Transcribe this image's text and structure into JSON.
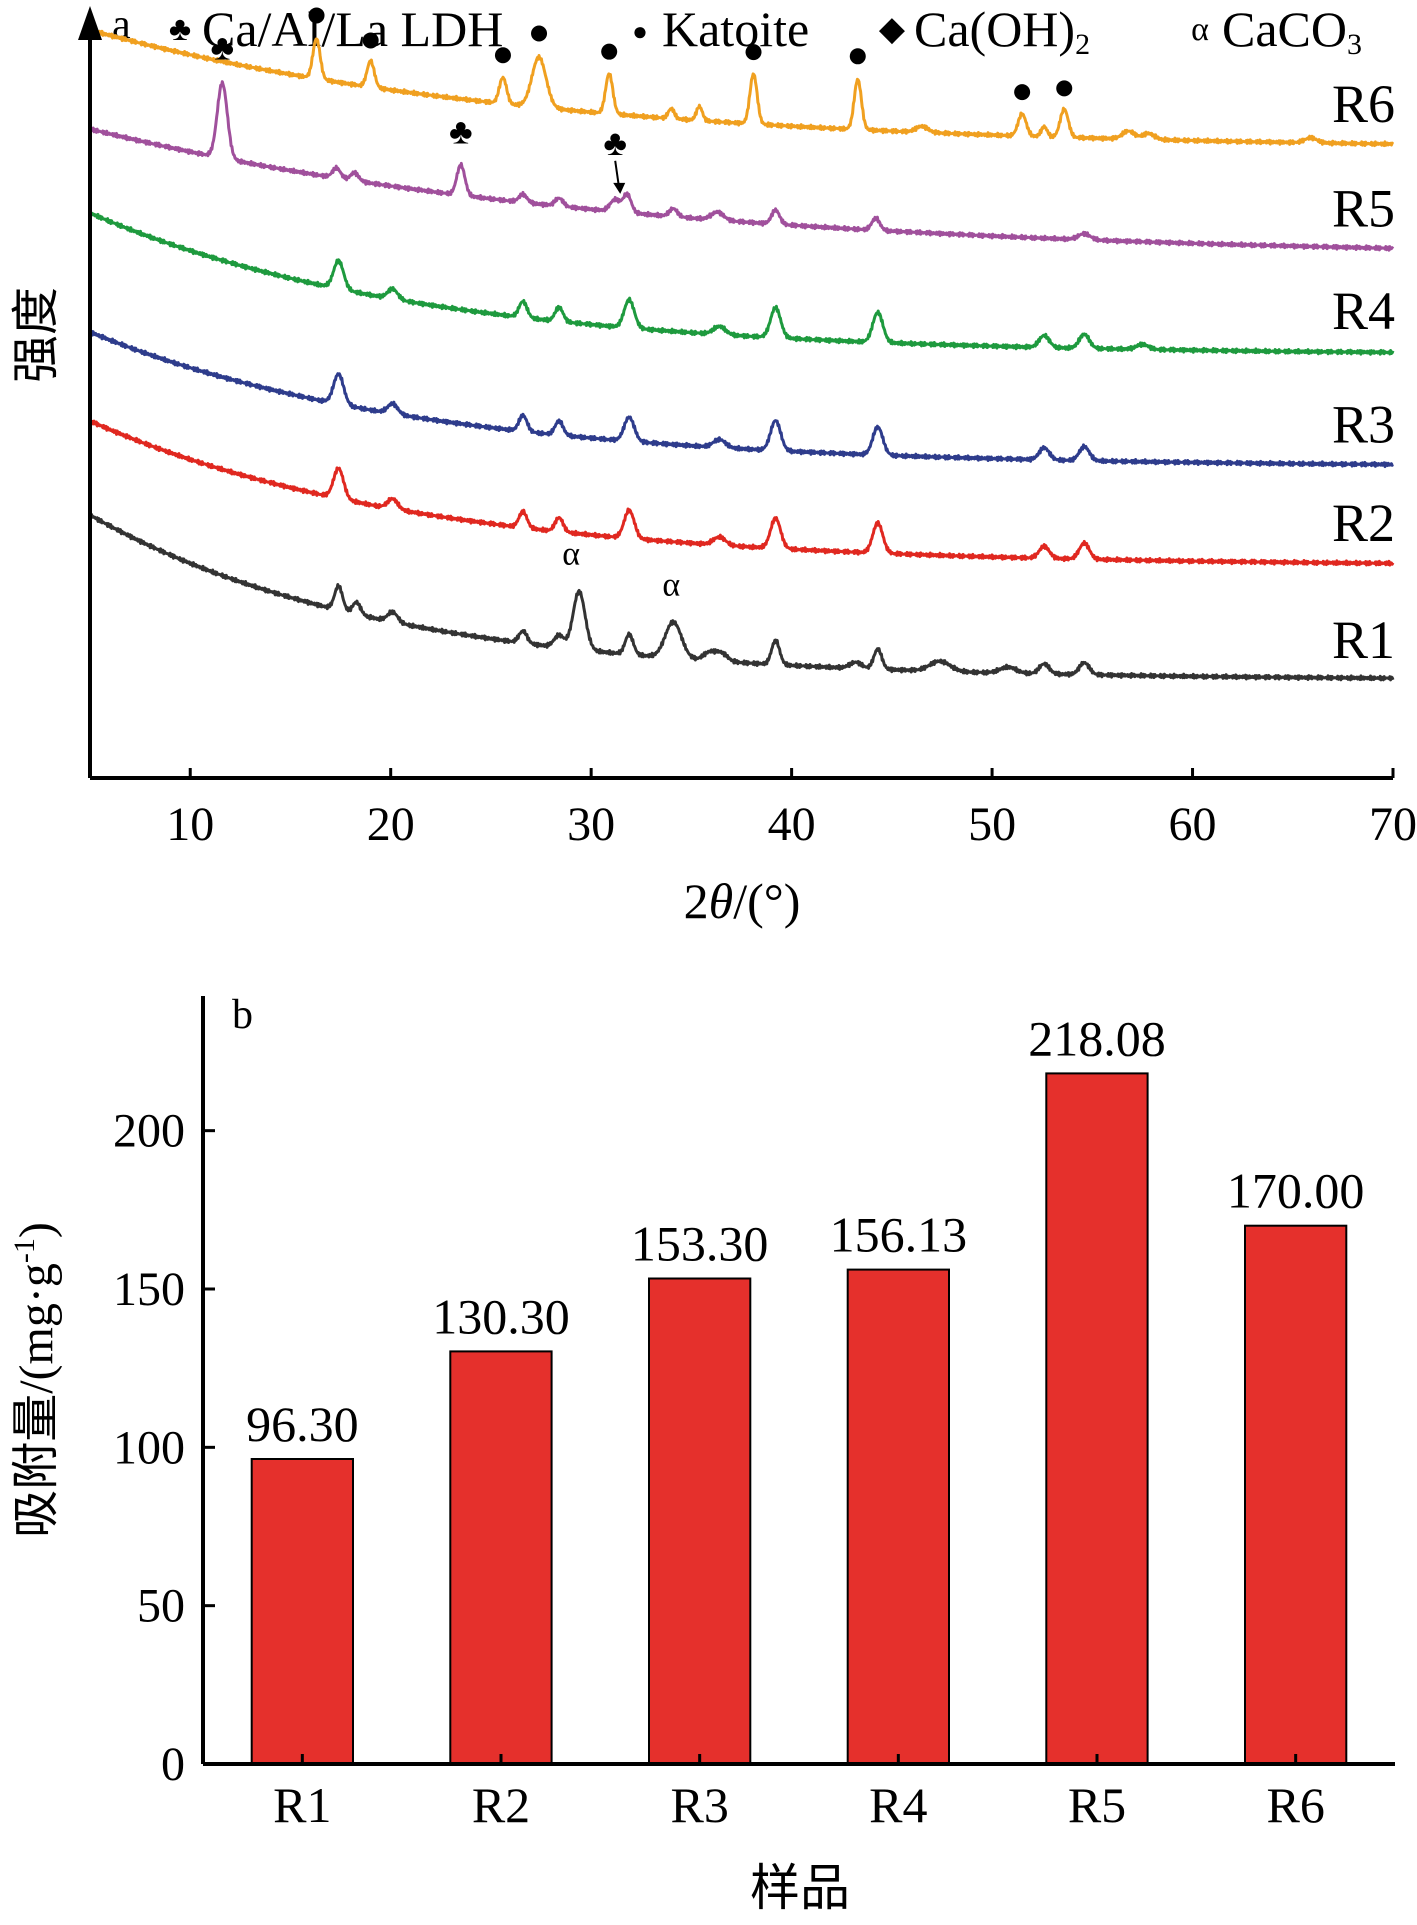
{
  "chart_data": [
    {
      "type": "line",
      "panel_label": "a",
      "xlabel_prefix": "2",
      "xlabel_theta": "θ",
      "xlabel_suffix": "/(°)",
      "ylabel": "强度",
      "xlim": [
        5,
        70
      ],
      "xticks": [
        10,
        20,
        30,
        40,
        50,
        60,
        70
      ],
      "legend": [
        {
          "symbol": "♣",
          "label": "Ca/Al/La LDH"
        },
        {
          "symbol": "●",
          "label": "Katoite"
        },
        {
          "symbol": "◆",
          "label": "Ca(OH)",
          "subscript": "2"
        },
        {
          "symbol": "α",
          "label": "CaCO",
          "subscript": "3"
        }
      ],
      "series": [
        {
          "name": "R6",
          "color": "#f0a020",
          "offset": 5,
          "background": {
            "start": 1.55,
            "end": 0.35,
            "decay": 3.0
          },
          "peaks": [
            [
              16.3,
              0.4,
              0.18
            ],
            [
              19.0,
              0.26,
              0.18
            ],
            [
              25.6,
              0.26,
              0.18
            ],
            [
              27.4,
              0.5,
              0.35
            ],
            [
              30.9,
              0.4,
              0.18
            ],
            [
              34.0,
              0.1,
              0.15
            ],
            [
              35.4,
              0.14,
              0.15
            ],
            [
              38.1,
              0.5,
              0.18
            ],
            [
              43.3,
              0.5,
              0.18
            ],
            [
              46.5,
              0.06,
              0.3
            ],
            [
              51.5,
              0.22,
              0.2
            ],
            [
              52.6,
              0.1,
              0.15
            ],
            [
              53.6,
              0.28,
              0.2
            ],
            [
              56.8,
              0.08,
              0.3
            ],
            [
              57.8,
              0.06,
              0.3
            ],
            [
              65.9,
              0.05,
              0.3
            ]
          ],
          "markers": [
            {
              "symbol": "●",
              "x": 16.3
            },
            {
              "symbol": "●",
              "x": 19.0
            },
            {
              "symbol": "●",
              "x": 25.6
            },
            {
              "symbol": "●",
              "x": 27.4
            },
            {
              "symbol": "●",
              "x": 30.9
            },
            {
              "symbol": "●",
              "x": 38.1
            },
            {
              "symbol": "●",
              "x": 43.3
            },
            {
              "symbol": "●",
              "x": 51.5
            },
            {
              "symbol": "●",
              "x": 53.6
            }
          ]
        },
        {
          "name": "R5",
          "color": "#a0509c",
          "offset": 4,
          "background": {
            "start": 1.6,
            "end": 0.3,
            "decay": 2.5
          },
          "peaks": [
            [
              11.6,
              0.75,
              0.25
            ],
            [
              17.3,
              0.1,
              0.2
            ],
            [
              18.2,
              0.08,
              0.2
            ],
            [
              23.5,
              0.3,
              0.2
            ],
            [
              26.6,
              0.08,
              0.2
            ],
            [
              28.4,
              0.08,
              0.2
            ],
            [
              31.2,
              0.12,
              0.25
            ],
            [
              31.8,
              0.18,
              0.2
            ],
            [
              34.1,
              0.08,
              0.2
            ],
            [
              36.3,
              0.08,
              0.3
            ],
            [
              39.2,
              0.14,
              0.2
            ],
            [
              44.2,
              0.12,
              0.2
            ],
            [
              54.6,
              0.06,
              0.3
            ]
          ],
          "markers": [
            {
              "symbol": "♣",
              "x": 11.6
            },
            {
              "symbol": "♣",
              "x": 23.5
            },
            {
              "symbol": "♣",
              "x": 31.2,
              "arrow": true
            }
          ]
        },
        {
          "name": "R4",
          "color": "#1e9a3e",
          "offset": 3,
          "background": {
            "start": 1.8,
            "end": 0.38,
            "decay": 4.0
          },
          "peaks": [
            [
              17.4,
              0.28,
              0.25
            ],
            [
              20.1,
              0.1,
              0.25
            ],
            [
              26.6,
              0.16,
              0.2
            ],
            [
              28.4,
              0.14,
              0.2
            ],
            [
              31.9,
              0.28,
              0.25
            ],
            [
              36.4,
              0.08,
              0.3
            ],
            [
              39.2,
              0.3,
              0.25
            ],
            [
              44.3,
              0.3,
              0.25
            ],
            [
              52.6,
              0.12,
              0.25
            ],
            [
              54.6,
              0.14,
              0.25
            ],
            [
              57.5,
              0.05,
              0.3
            ]
          ],
          "markers": []
        },
        {
          "name": "R3",
          "color": "#2e3c8c",
          "offset": 2,
          "background": {
            "start": 1.65,
            "end": 0.3,
            "decay": 4.0
          },
          "peaks": [
            [
              17.4,
              0.3,
              0.25
            ],
            [
              20.1,
              0.1,
              0.25
            ],
            [
              26.6,
              0.16,
              0.2
            ],
            [
              28.4,
              0.14,
              0.2
            ],
            [
              31.9,
              0.24,
              0.25
            ],
            [
              36.4,
              0.08,
              0.3
            ],
            [
              39.2,
              0.3,
              0.25
            ],
            [
              44.3,
              0.28,
              0.25
            ],
            [
              52.6,
              0.12,
              0.25
            ],
            [
              54.6,
              0.14,
              0.25
            ]
          ],
          "markers": []
        },
        {
          "name": "R2",
          "color": "#e02820",
          "offset": 1,
          "background": {
            "start": 1.8,
            "end": 0.35,
            "decay": 4.0
          },
          "peaks": [
            [
              17.4,
              0.3,
              0.25
            ],
            [
              20.1,
              0.1,
              0.25
            ],
            [
              26.6,
              0.16,
              0.2
            ],
            [
              28.4,
              0.14,
              0.2
            ],
            [
              31.9,
              0.28,
              0.25
            ],
            [
              36.4,
              0.08,
              0.3
            ],
            [
              39.2,
              0.3,
              0.25
            ],
            [
              44.3,
              0.3,
              0.25
            ],
            [
              52.6,
              0.12,
              0.25
            ],
            [
              54.6,
              0.16,
              0.25
            ]
          ],
          "markers": []
        },
        {
          "name": "R1",
          "color": "#333333",
          "offset": 0,
          "background": {
            "start": 1.9,
            "end": 0.25,
            "decay": 4.5
          },
          "peaks": [
            [
              17.4,
              0.24,
              0.2
            ],
            [
              18.3,
              0.12,
              0.2
            ],
            [
              20.1,
              0.1,
              0.25
            ],
            [
              26.6,
              0.12,
              0.2
            ],
            [
              28.4,
              0.12,
              0.25
            ],
            [
              29.4,
              0.58,
              0.3
            ],
            [
              31.9,
              0.2,
              0.2
            ],
            [
              34.1,
              0.36,
              0.4
            ],
            [
              35.9,
              0.08,
              0.3
            ],
            [
              36.5,
              0.08,
              0.3
            ],
            [
              39.2,
              0.24,
              0.2
            ],
            [
              43.2,
              0.06,
              0.3
            ],
            [
              44.3,
              0.2,
              0.2
            ],
            [
              47.4,
              0.1,
              0.5
            ],
            [
              50.8,
              0.06,
              0.4
            ],
            [
              52.6,
              0.1,
              0.25
            ],
            [
              54.6,
              0.12,
              0.25
            ]
          ],
          "markers": [
            {
              "symbol": "α",
              "x": 29.0
            },
            {
              "symbol": "α",
              "x": 34.0
            }
          ]
        }
      ]
    },
    {
      "type": "bar",
      "panel_label": "b",
      "xlabel": "样品",
      "ylabel": "吸附量/(mg·g",
      "ylabel_sup": "-1",
      "ylabel_end": ")",
      "categories": [
        "R1",
        "R2",
        "R3",
        "R4",
        "R5",
        "R6"
      ],
      "values": [
        96.3,
        130.3,
        153.3,
        156.13,
        218.08,
        170.0
      ],
      "data_labels": [
        "96.30",
        "130.30",
        "153.30",
        "156.13",
        "218.08",
        "170.00"
      ],
      "ylim": [
        0,
        240
      ],
      "yticks": [
        0,
        50,
        100,
        150,
        200
      ],
      "bar_color": "#e5302c"
    }
  ]
}
